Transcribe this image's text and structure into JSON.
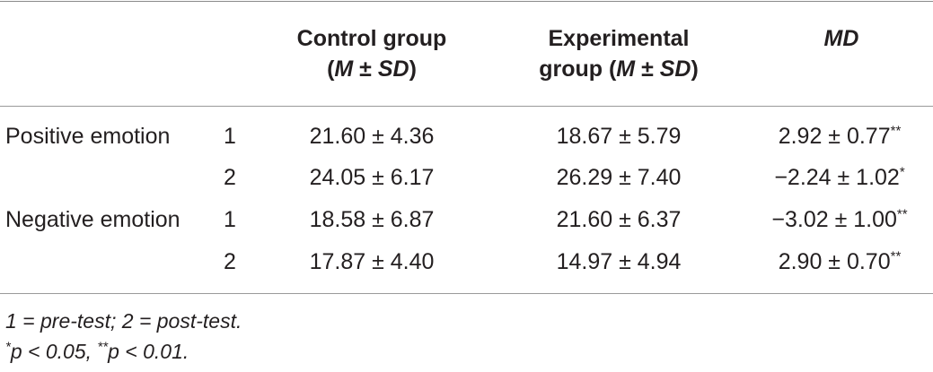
{
  "table": {
    "headers": {
      "stub": "",
      "time": "",
      "control": {
        "line1": "Control group",
        "line2_open": "(",
        "line2_m": "M",
        "line2_pm": " ± ",
        "line2_sd": "SD",
        "line2_close": ")"
      },
      "experimental": {
        "line1": "Experimental",
        "line2_pre": "group (",
        "line2_m": "M",
        "line2_pm": " ± ",
        "line2_sd": "SD",
        "line2_close": ")"
      },
      "md": "MD"
    },
    "rows": [
      {
        "measure": "Positive emotion",
        "time": "1",
        "control": "21.60 ± 4.36",
        "experimental": "18.67 ± 5.79",
        "md": "2.92 ± 0.77",
        "md_sig": "**"
      },
      {
        "measure": "",
        "time": "2",
        "control": "24.05 ± 6.17",
        "experimental": "26.29 ± 7.40",
        "md": "−2.24 ± 1.02",
        "md_sig": "*"
      },
      {
        "measure": "Negative emotion",
        "time": "1",
        "control": "18.58 ± 6.87",
        "experimental": "21.60 ± 6.37",
        "md": "−3.02 ± 1.00",
        "md_sig": "**"
      },
      {
        "measure": "",
        "time": "2",
        "control": "17.87 ± 4.40",
        "experimental": "14.97 ± 4.94",
        "md": "2.90 ± 0.70",
        "md_sig": "**"
      }
    ]
  },
  "notes": {
    "line1": "1 = pre-test; 2 = post-test.",
    "line2_a_sig": "*",
    "line2_a": "p < 0.05, ",
    "line2_b_sig": "**",
    "line2_b": "p < 0.01."
  }
}
